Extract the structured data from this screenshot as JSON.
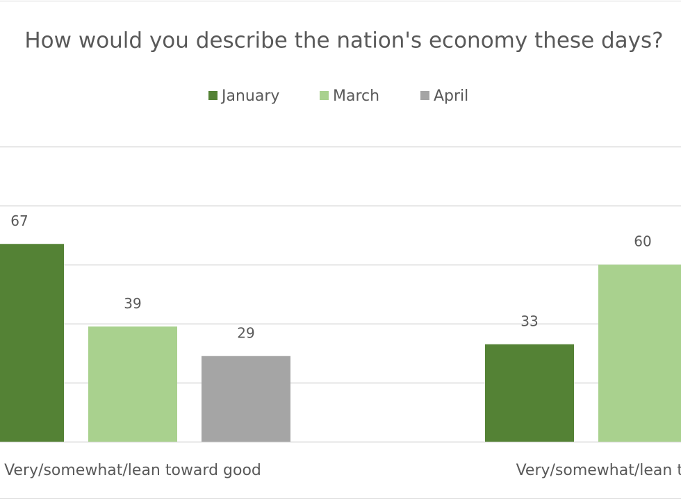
{
  "chart_data": {
    "type": "bar",
    "title": "How would you describe the nation's economy these days?",
    "categories": [
      "Very/somewhat/lean toward good",
      "Very/somewhat/lean toward poor"
    ],
    "series": [
      {
        "name": "January",
        "color": "#548235",
        "values": [
          67,
          33
        ]
      },
      {
        "name": "March",
        "color": "#a9d18e",
        "values": [
          39,
          60
        ]
      },
      {
        "name": "April",
        "color": "#a5a5a5",
        "values": [
          29,
          null
        ]
      }
    ],
    "ylim": [
      0,
      100
    ],
    "yticks": [
      0,
      20,
      40,
      60,
      80,
      100
    ],
    "grid": true,
    "legend": "top"
  }
}
